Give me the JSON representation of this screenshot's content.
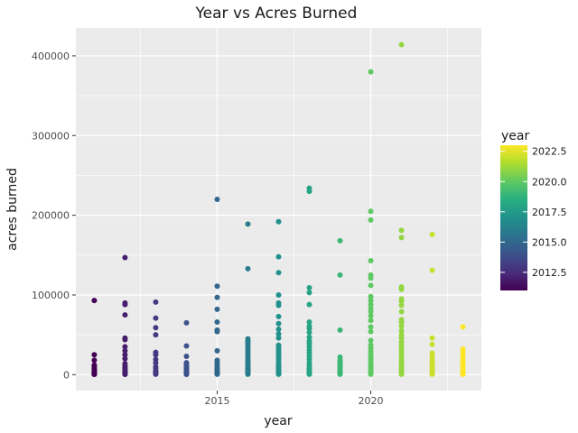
{
  "chart_data": {
    "type": "scatter",
    "title": "Year vs Acres Burned",
    "xlabel": "year",
    "ylabel": "acres burned",
    "xlim": [
      2010.4,
      2023.6
    ],
    "ylim": [
      -20000,
      435000
    ],
    "x_ticks": [
      2015,
      2020
    ],
    "x_tick_labels": [
      "2015",
      "2020"
    ],
    "y_ticks": [
      0,
      100000,
      200000,
      300000,
      400000
    ],
    "y_tick_labels": [
      "0",
      "100000",
      "200000",
      "300000",
      "400000"
    ],
    "grid": true,
    "legend": {
      "title": "year",
      "position": "right",
      "type": "colorbar",
      "palette": "viridis",
      "range": [
        2011,
        2023
      ],
      "ticks": [
        2012.5,
        2015.0,
        2017.5,
        2020.0,
        2022.5
      ],
      "tick_labels": [
        "2012.5",
        "2015.0",
        "2017.5",
        "2020.0",
        "2022.5"
      ]
    },
    "points": [
      {
        "year": 2011,
        "acres": [
          93000,
          25000,
          18000,
          12000,
          10000,
          8000,
          6000,
          5000,
          4000,
          3000,
          2500,
          2000,
          1500,
          1000,
          800,
          500,
          300
        ]
      },
      {
        "year": 2012,
        "acres": [
          147000,
          90000,
          88000,
          75000,
          46000,
          44000,
          35000,
          30000,
          25000,
          20000,
          14000,
          11000,
          9000,
          7000,
          5000,
          4000,
          3000,
          2000,
          1500,
          1000,
          600,
          300
        ]
      },
      {
        "year": 2013,
        "acres": [
          91000,
          71000,
          59000,
          50000,
          28000,
          25000,
          19000,
          15000,
          10000,
          8000,
          5000,
          4000,
          3000,
          2000,
          1000,
          500
        ]
      },
      {
        "year": 2014,
        "acres": [
          65000,
          36000,
          23000,
          15000,
          13000,
          11000,
          9000,
          8000,
          7000,
          5000,
          4000,
          3000,
          2500,
          2000,
          1500,
          1000,
          700,
          400
        ]
      },
      {
        "year": 2015,
        "acres": [
          220000,
          111000,
          97000,
          82000,
          66000,
          56000,
          54000,
          30000,
          18000,
          15000,
          13000,
          10000,
          8000,
          6000,
          5000,
          4000,
          3000,
          2000,
          1500,
          1000,
          500
        ]
      },
      {
        "year": 2016,
        "acres": [
          189000,
          133000,
          45000,
          42000,
          40000,
          38000,
          35000,
          32000,
          29000,
          26000,
          23000,
          20000,
          17000,
          15000,
          13000,
          11000,
          9000,
          8000,
          7000,
          6000,
          5000,
          4000,
          3000,
          2000,
          1500,
          1000,
          500
        ]
      },
      {
        "year": 2017,
        "acres": [
          192000,
          148000,
          128000,
          100000,
          90000,
          87000,
          73000,
          64000,
          57000,
          51000,
          46000,
          37000,
          34000,
          31000,
          28000,
          25000,
          22000,
          19000,
          16000,
          13000,
          11000,
          9000,
          7000,
          5000,
          3500,
          2000,
          1000,
          500
        ]
      },
      {
        "year": 2018,
        "acres": [
          234000,
          230000,
          109000,
          103000,
          88000,
          66000,
          61000,
          58000,
          53000,
          47000,
          42000,
          39000,
          35000,
          31000,
          27000,
          23000,
          19000,
          15000,
          12000,
          9000,
          7000,
          5000,
          3000,
          2000,
          1000,
          500
        ]
      },
      {
        "year": 2019,
        "acres": [
          168000,
          125000,
          56000,
          22000,
          18000,
          16000,
          14000,
          12000,
          10000,
          8000,
          6000,
          4000,
          3000,
          2000,
          1000,
          500
        ]
      },
      {
        "year": 2020,
        "acres": [
          380000,
          205000,
          194000,
          143000,
          125000,
          121000,
          112000,
          98000,
          93000,
          88000,
          83000,
          79000,
          74000,
          68000,
          60000,
          54000,
          43000,
          37000,
          33000,
          29000,
          25000,
          22000,
          19000,
          16000,
          13000,
          11000,
          9000,
          7000,
          5000,
          3000,
          2000,
          1000,
          500
        ]
      },
      {
        "year": 2021,
        "acres": [
          414000,
          181000,
          172000,
          110000,
          107000,
          95000,
          92000,
          87000,
          79000,
          69000,
          66000,
          61000,
          55000,
          50000,
          46000,
          41000,
          37000,
          33000,
          29000,
          25000,
          21000,
          18000,
          15000,
          12000,
          10000,
          8000,
          6000,
          4000,
          3000,
          2000,
          1000,
          500
        ]
      },
      {
        "year": 2022,
        "acres": [
          176000,
          131000,
          46000,
          38000,
          27000,
          22000,
          19000,
          16000,
          13000,
          10000,
          8000,
          6000,
          4000,
          3000,
          2000,
          1000,
          500
        ]
      },
      {
        "year": 2023,
        "acres": [
          60000,
          32000,
          28000,
          23000,
          19000,
          16000,
          13000,
          11000,
          9000,
          7000,
          5000,
          4000,
          3000,
          2000,
          1000,
          500
        ]
      }
    ]
  }
}
